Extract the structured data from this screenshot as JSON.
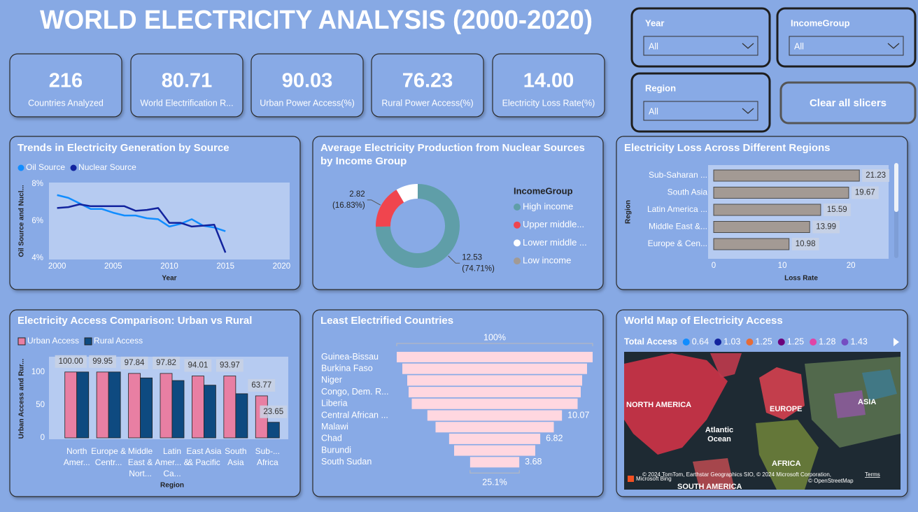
{
  "header": {
    "title": "WORLD ELECTRICITY ANALYSIS (2000-2020)"
  },
  "kpis": [
    {
      "value": "216",
      "label": "Countries Analyzed"
    },
    {
      "value": "80.71",
      "label": "World Electrification R..."
    },
    {
      "value": "90.03",
      "label": "Urban Power Access(%)"
    },
    {
      "value": "76.23",
      "label": "Rural Power Access(%)"
    },
    {
      "value": "14.00",
      "label": "Electricity Loss Rate(%)"
    }
  ],
  "slicers": [
    {
      "label": "Year",
      "value": "All"
    },
    {
      "label": "IncomeGroup",
      "value": "All"
    },
    {
      "label": "Region",
      "value": "All"
    }
  ],
  "clear_button": "Clear all slicers",
  "chart_data": [
    {
      "type": "line",
      "title": "Trends in Electricity Generation by Source",
      "x": [
        2000,
        2001,
        2002,
        2003,
        2004,
        2005,
        2006,
        2007,
        2008,
        2009,
        2010,
        2011,
        2012,
        2013,
        2014,
        2015
      ],
      "series": [
        {
          "name": "Oil Source",
          "color": "#118dff",
          "values": [
            7.4,
            7.25,
            6.95,
            6.65,
            6.65,
            6.45,
            6.3,
            6.3,
            6.15,
            6.1,
            5.7,
            5.85,
            6.1,
            5.75,
            5.65,
            5.45
          ]
        },
        {
          "name": "Nuclear Source",
          "color": "#12239e",
          "values": [
            6.7,
            6.75,
            6.9,
            6.8,
            6.8,
            6.8,
            6.8,
            6.55,
            6.6,
            6.7,
            5.9,
            5.9,
            5.7,
            5.75,
            5.8,
            4.3
          ]
        }
      ],
      "xlim": [
        1999.4,
        2020.6
      ],
      "xticks": [
        2000,
        2005,
        2010,
        2015,
        2020
      ],
      "ylim": [
        4,
        8
      ],
      "yticks": [
        {
          "value": 4,
          "label": "4%"
        },
        {
          "value": 6,
          "label": "6%"
        },
        {
          "value": 8,
          "label": "8%"
        }
      ],
      "xlabel": "Year",
      "ylabel": "Oil Source and Nucl...",
      "grid": false,
      "legend": "top-left"
    },
    {
      "type": "donut",
      "title": "Average Electricity Production from Nuclear Sources by Income Group",
      "legend_title": "IncomeGroup",
      "categories": [
        "High income",
        "Upper middle...",
        "Lower middle ...",
        "Low income"
      ],
      "values": [
        12.53,
        2.82,
        1.42,
        0
      ],
      "percent_labels": [
        "(74.71%)",
        "(16.83%)",
        null,
        null
      ],
      "colors": [
        "#5f9ea8",
        "#f0454e",
        "#ffffff",
        "#a29a94"
      ],
      "legend": "right"
    },
    {
      "type": "bar",
      "orientation": "horizontal",
      "title": "Electricity Loss Across Different Regions",
      "categories": [
        "Sub-Saharan ...",
        "South Asia",
        "Latin America ...",
        "Middle East &...",
        "Europe & Cen..."
      ],
      "values": [
        21.23,
        19.67,
        15.59,
        13.99,
        10.98
      ],
      "color": "#a39a94",
      "xlim": [
        0,
        26
      ],
      "xticks": [
        0,
        10,
        20
      ],
      "xlabel": "Loss Rate",
      "ylabel": "Region"
    },
    {
      "type": "bar",
      "orientation": "vertical",
      "title": "Electricity Access Comparison: Urban vs Rural",
      "categories": [
        "North Amer...",
        "Europe & Centr...",
        "Middle East & Nort...",
        "Latin Amer... & Ca...",
        "East Asia & Pacific",
        "South Asia",
        "Sub-... Africa"
      ],
      "series": [
        {
          "name": "Urban Access",
          "color": "#e87fa3",
          "values": [
            100,
            99.95,
            97.84,
            97.82,
            94.01,
            93.97,
            63.77
          ],
          "value_labels": [
            "100.00",
            "99.95",
            "97.84",
            "97.82",
            "94.01",
            "93.97",
            "63.77"
          ]
        },
        {
          "name": "Rural Access",
          "color": "#0e4a80",
          "values": [
            100,
            100,
            91,
            87,
            80,
            67,
            23.65
          ],
          "value_labels": [
            null,
            null,
            null,
            null,
            null,
            null,
            "23.65"
          ]
        }
      ],
      "ylim": [
        0,
        120
      ],
      "yticks": [
        0,
        50,
        100
      ],
      "xlabel": "Region",
      "ylabel": "Urban Access and Rur...",
      "legend": "top-left"
    },
    {
      "type": "funnel",
      "title": "Least Electrified Countries",
      "categories": [
        "Guinea-Bissau",
        "Burkina Faso",
        "Niger",
        "Congo, Dem. R...",
        "Liberia",
        "Central African ...",
        "Malawi",
        "Chad",
        "Burundi",
        "South Sudan"
      ],
      "values": [
        14.66,
        13.82,
        13.09,
        12.88,
        12.41,
        10.07,
        8.85,
        6.82,
        6.07,
        3.68
      ],
      "value_labels": [
        null,
        null,
        null,
        null,
        null,
        "10.07",
        null,
        "6.82",
        null,
        "3.68"
      ],
      "top_label": "100%",
      "bottom_label": "25.1%",
      "color": "#ffd7e0"
    },
    {
      "type": "map",
      "title": "World Map of Electricity Access",
      "legend_title": "Total Access",
      "legend": [
        {
          "value": 0.64,
          "color": "#118dff"
        },
        {
          "value": 1.03,
          "color": "#12239e"
        },
        {
          "value": 1.25,
          "color": "#e66c37"
        },
        {
          "value": 1.25,
          "color": "#6b007b"
        },
        {
          "value": 1.28,
          "color": "#e044a7"
        },
        {
          "value": 1.43,
          "color": "#744ec2"
        }
      ],
      "region_labels": [
        "NORTH AMERICA",
        "EUROPE",
        "ASIA",
        "Atlantic Ocean",
        "AFRICA",
        "SOUTH AMERICA"
      ],
      "attribution": [
        "© 2024 TomTom, Earthstar Geographics SIO, © 2024 Microsoft Corporation,",
        "Terms",
        "© OpenStreetMap",
        "Microsoft Bing"
      ]
    }
  ]
}
